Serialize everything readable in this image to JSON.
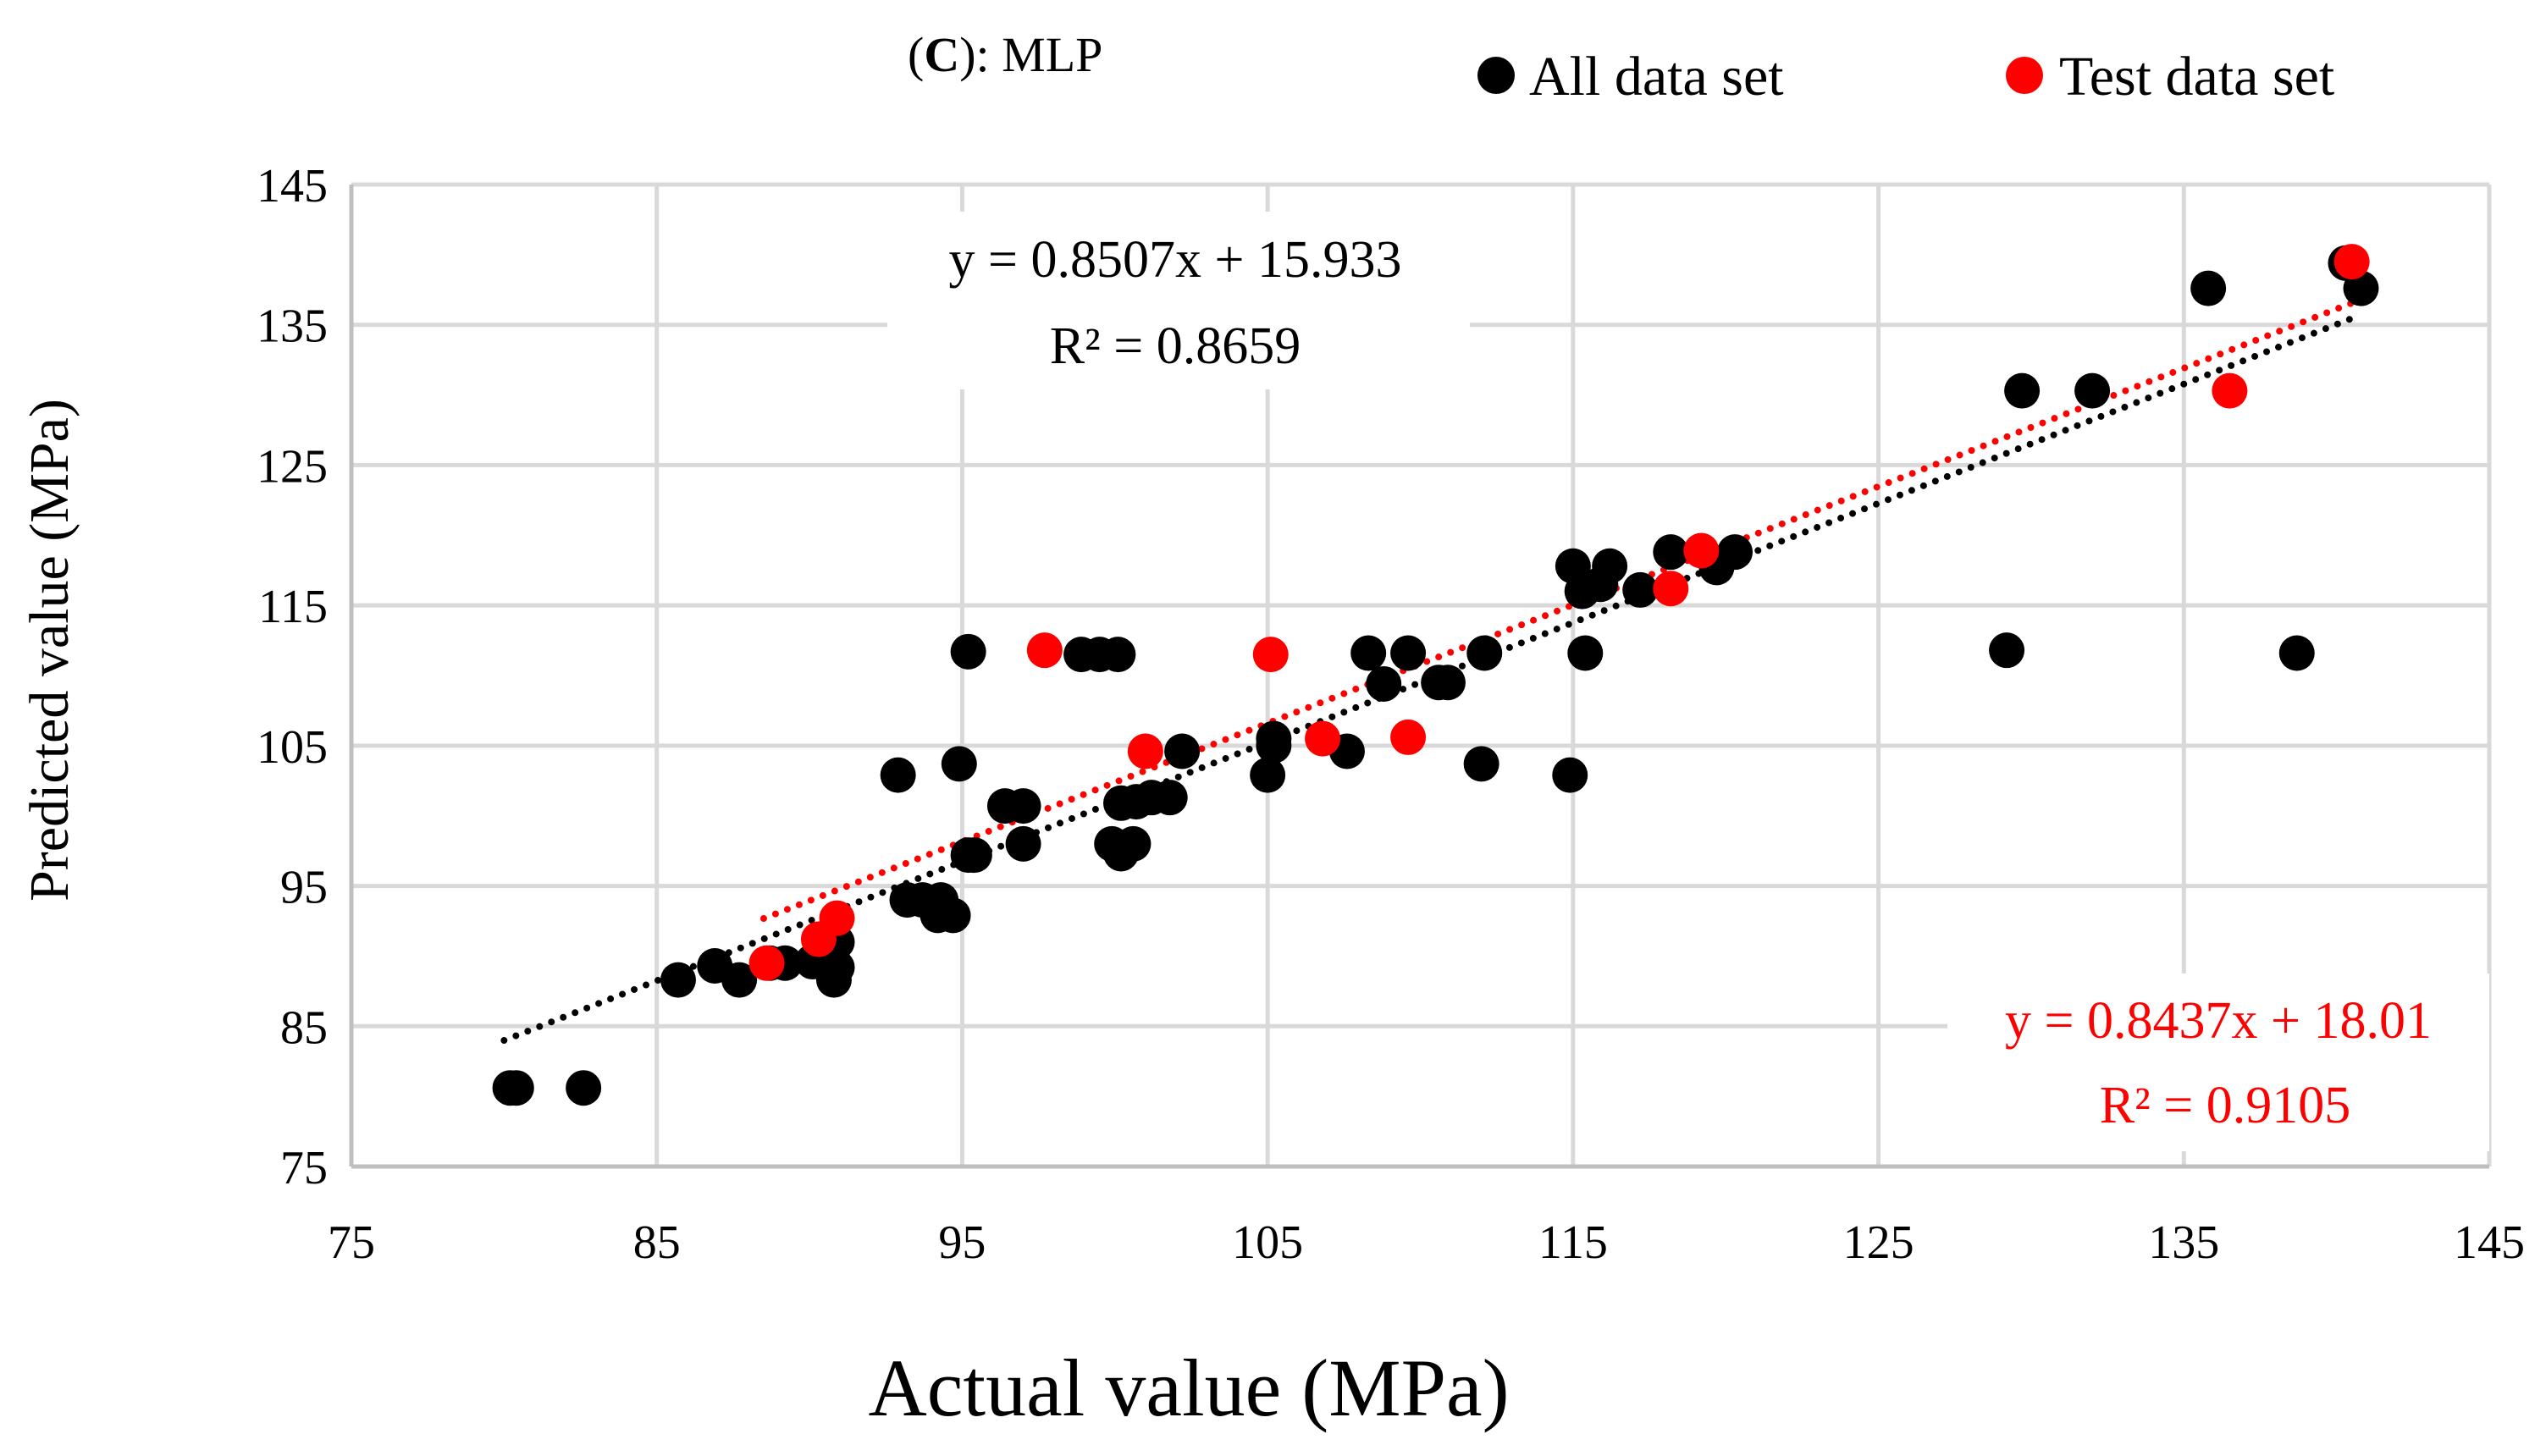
{
  "chart_data": {
    "type": "scatter",
    "title_prefix": "(",
    "title_bold": "C",
    "title_suffix": "): MLP",
    "xlabel": "Actual value (MPa)",
    "ylabel": "Predicted value (MPa)",
    "xlim": [
      75,
      145
    ],
    "ylim": [
      75,
      145
    ],
    "xticks": [
      75,
      85,
      95,
      105,
      115,
      125,
      135,
      145
    ],
    "yticks": [
      75,
      85,
      95,
      105,
      115,
      125,
      135,
      145
    ],
    "grid": true,
    "legend_position": "top-right",
    "series": [
      {
        "name": "All data set",
        "color": "#000000",
        "points": [
          [
            80.2,
            80.6
          ],
          [
            80.4,
            80.6
          ],
          [
            82.6,
            80.6
          ],
          [
            85.7,
            88.3
          ],
          [
            86.9,
            89.3
          ],
          [
            87.7,
            88.3
          ],
          [
            88.7,
            89.5
          ],
          [
            89.2,
            89.5
          ],
          [
            90.1,
            89.6
          ],
          [
            90.4,
            89.6
          ],
          [
            90.8,
            88.3
          ],
          [
            90.9,
            89.2
          ],
          [
            90.9,
            91.0
          ],
          [
            92.9,
            102.9
          ],
          [
            93.2,
            94.0
          ],
          [
            93.7,
            94.0
          ],
          [
            94.2,
            92.9
          ],
          [
            94.3,
            94.0
          ],
          [
            94.7,
            92.9
          ],
          [
            94.9,
            103.7
          ],
          [
            95.2,
            111.7
          ],
          [
            95.2,
            97.2
          ],
          [
            95.4,
            97.2
          ],
          [
            96.4,
            100.7
          ],
          [
            97.0,
            100.7
          ],
          [
            97.0,
            98.0
          ],
          [
            98.9,
            111.5
          ],
          [
            99.5,
            111.5
          ],
          [
            100.1,
            111.5
          ],
          [
            99.9,
            98.0
          ],
          [
            100.2,
            97.3
          ],
          [
            100.6,
            98.0
          ],
          [
            100.2,
            100.9
          ],
          [
            100.7,
            101.0
          ],
          [
            101.2,
            101.3
          ],
          [
            101.8,
            101.3
          ],
          [
            102.2,
            104.6
          ],
          [
            105.0,
            102.9
          ],
          [
            105.2,
            105.0
          ],
          [
            105.2,
            105.5
          ],
          [
            107.6,
            104.6
          ],
          [
            108.3,
            111.6
          ],
          [
            108.8,
            109.4
          ],
          [
            109.6,
            111.6
          ],
          [
            110.6,
            109.5
          ],
          [
            110.9,
            109.5
          ],
          [
            112.1,
            111.6
          ],
          [
            112.0,
            103.7
          ],
          [
            114.9,
            102.9
          ],
          [
            115.0,
            117.8
          ],
          [
            115.3,
            116.0
          ],
          [
            115.4,
            111.6
          ],
          [
            115.9,
            116.5
          ],
          [
            116.2,
            117.8
          ],
          [
            117.2,
            116.1
          ],
          [
            118.2,
            118.8
          ],
          [
            119.7,
            117.7
          ],
          [
            120.3,
            118.8
          ],
          [
            129.2,
            111.8
          ],
          [
            129.7,
            130.3
          ],
          [
            132.0,
            130.3
          ],
          [
            135.8,
            137.6
          ],
          [
            138.7,
            111.6
          ],
          [
            140.3,
            139.4
          ],
          [
            140.8,
            137.6
          ]
        ]
      },
      {
        "name": "Test data set",
        "color": "#ff0000",
        "points": [
          [
            88.6,
            89.5
          ],
          [
            90.3,
            91.2
          ],
          [
            90.9,
            92.7
          ],
          [
            97.7,
            111.8
          ],
          [
            101.0,
            104.6
          ],
          [
            105.1,
            111.5
          ],
          [
            106.8,
            105.5
          ],
          [
            109.6,
            105.6
          ],
          [
            118.2,
            116.2
          ],
          [
            119.2,
            118.9
          ],
          [
            136.5,
            130.3
          ],
          [
            140.5,
            139.5
          ]
        ]
      }
    ],
    "trendlines": [
      {
        "series": "All data set",
        "color": "#000000",
        "x_range": [
          80.0,
          140.5
        ],
        "slope": 0.8507,
        "intercept": 15.933,
        "equation": "y = 0.8507x + 15.933",
        "r2": "R² = 0.8659"
      },
      {
        "series": "Test data set",
        "color": "#ff0000",
        "x_range": [
          88.5,
          140.5
        ],
        "slope": 0.8437,
        "intercept": 18.01,
        "equation": "y = 0.8437x + 18.01",
        "r2": "R² = 0.9105"
      }
    ]
  }
}
